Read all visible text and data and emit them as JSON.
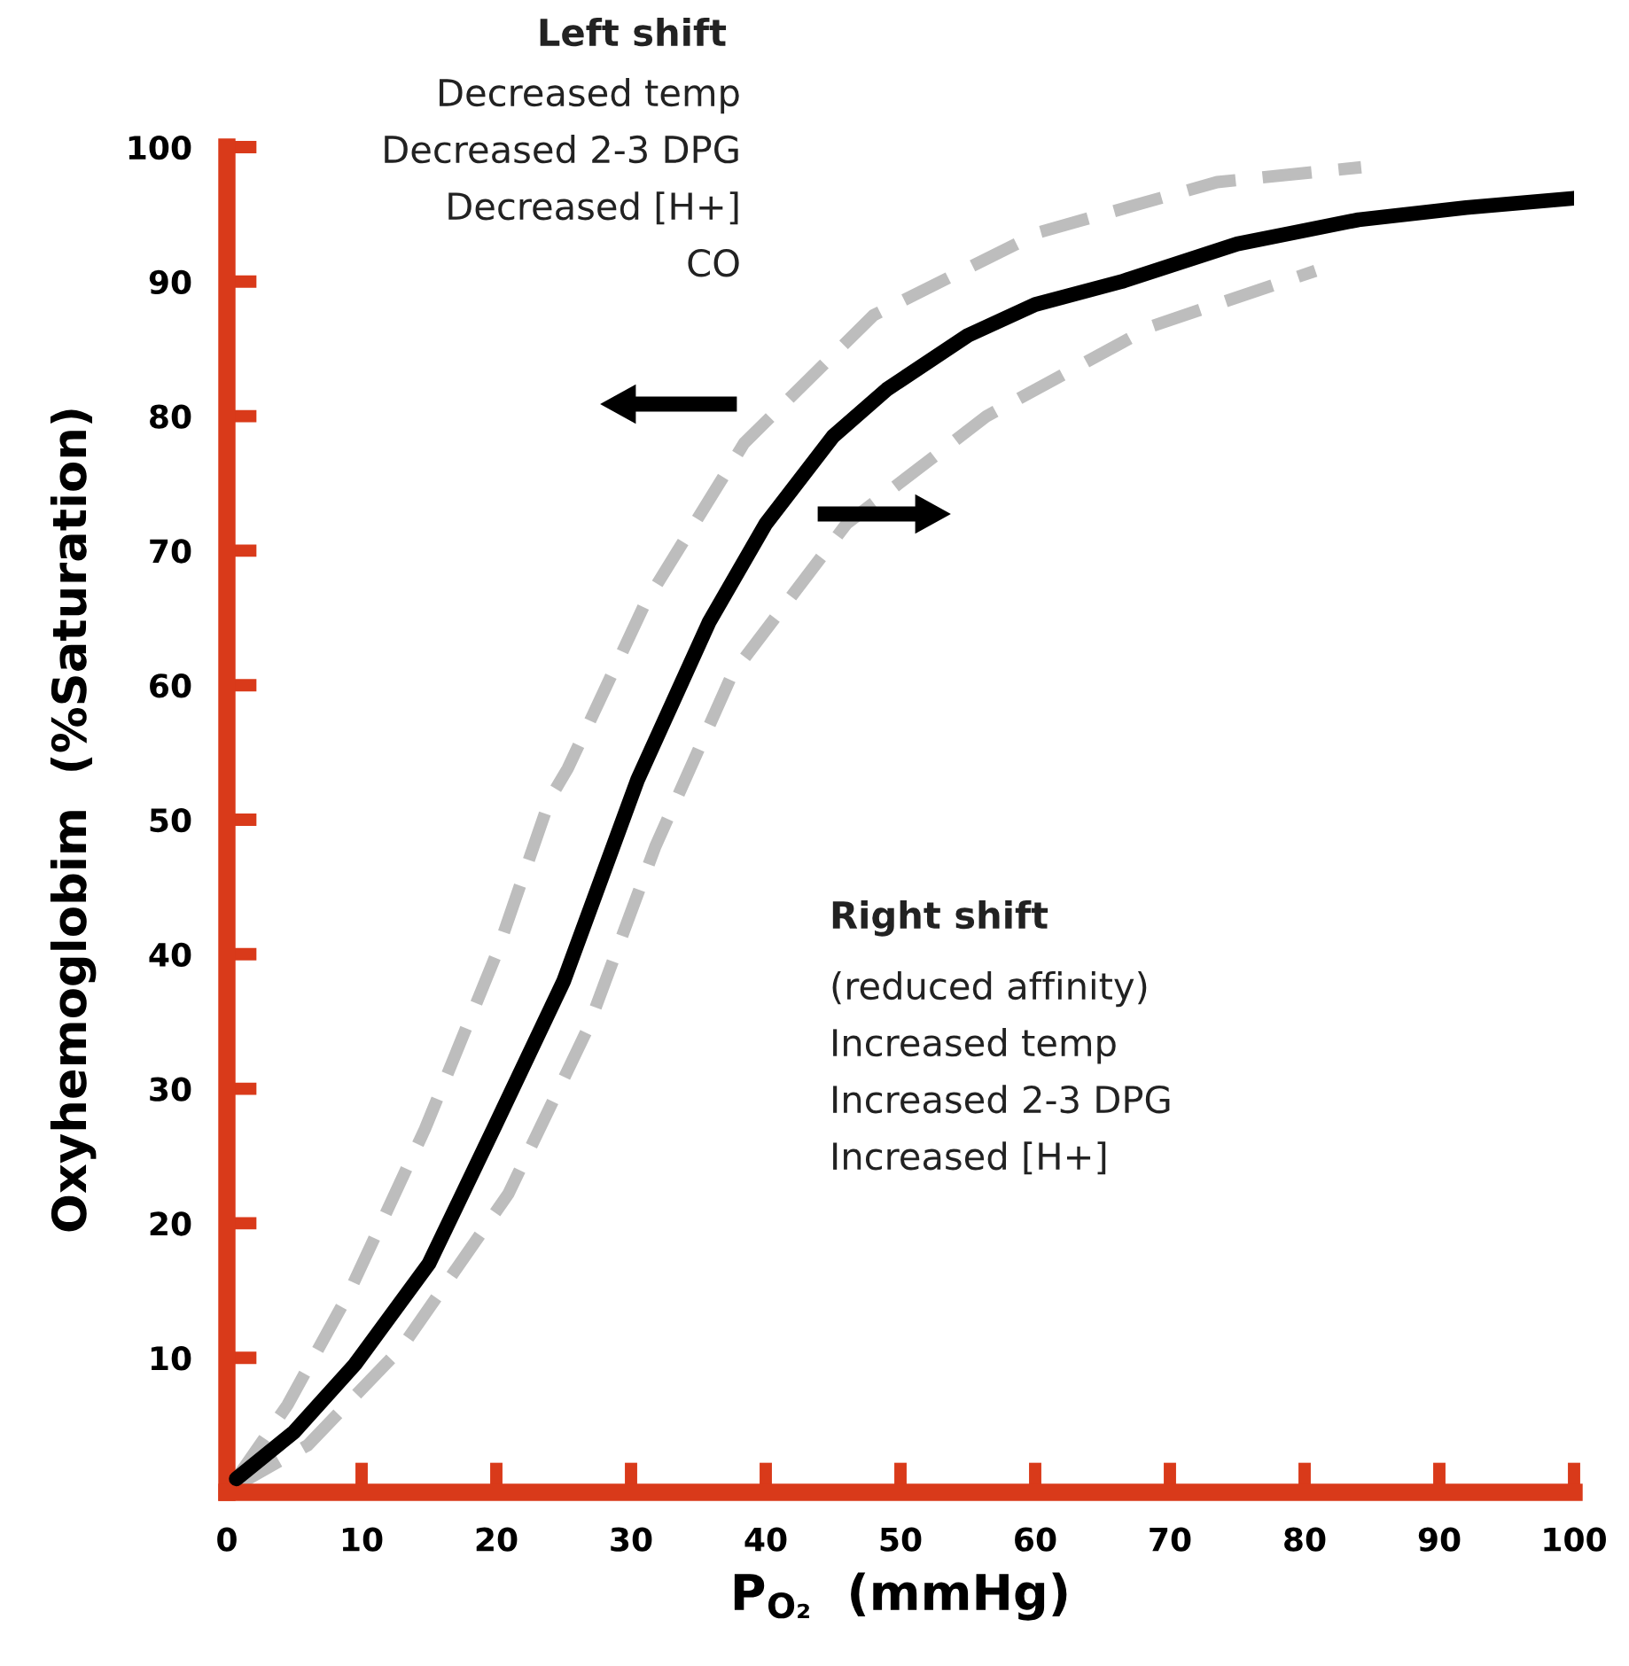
{
  "chart_data": {
    "type": "line",
    "xlabel": "P$_{O₂}$  (mmHg)",
    "ylabel": "Oxyhemoglobim  (%Saturation)",
    "xlim": [
      0,
      100
    ],
    "ylim": [
      0,
      100
    ],
    "xticks": [
      0,
      10,
      20,
      30,
      40,
      50,
      60,
      70,
      80,
      90,
      100
    ],
    "yticks": [
      10,
      20,
      30,
      40,
      50,
      60,
      70,
      80,
      90,
      100
    ],
    "grid": false,
    "legend": false,
    "marker": "none",
    "series": [
      {
        "color": "#000000",
        "line_style": "solid",
        "x": [
          0.7,
          5,
          9.5,
          15,
          19.6,
          25,
          30.5,
          35.8,
          40,
          45,
          49,
          55,
          60,
          66.4,
          75,
          84,
          92,
          100
        ],
        "values": [
          1,
          4.5,
          9.5,
          17,
          26.6,
          38,
          53,
          64.7,
          72,
          78.5,
          82,
          86,
          88.3,
          90,
          92.8,
          94.6,
          95.5,
          96.2
        ]
      },
      {
        "color": "#bdbdbd",
        "line_style": "dashed",
        "x": [
          0.7,
          4.5,
          9,
          14.7,
          20,
          24,
          25.3,
          31,
          38.4,
          48,
          60.4,
          73.5,
          84.2
        ],
        "values": [
          1,
          6.5,
          14.7,
          27,
          40,
          51.6,
          53.8,
          66,
          78,
          87.5,
          93.7,
          97.4,
          98.5
        ]
      },
      {
        "color": "#bdbdbd",
        "line_style": "dashed",
        "x": [
          0.7,
          6,
          13,
          20.9,
          26.8,
          31.8,
          37.5,
          46,
          56.4,
          68.7,
          80.8
        ],
        "values": [
          0.5,
          3.5,
          10.8,
          22.2,
          34.5,
          48,
          60.8,
          72,
          80,
          86.7,
          90.8
        ]
      }
    ],
    "annotations": [
      "Left shift",
      "Decreased temp\nDecreased 2-3 DPG\nDecreased [H+]\nCO",
      "Right shift",
      "(reduced affinity)\nIncreased temp\nIncreased 2-3 DPG\nIncreased [H+]"
    ]
  }
}
